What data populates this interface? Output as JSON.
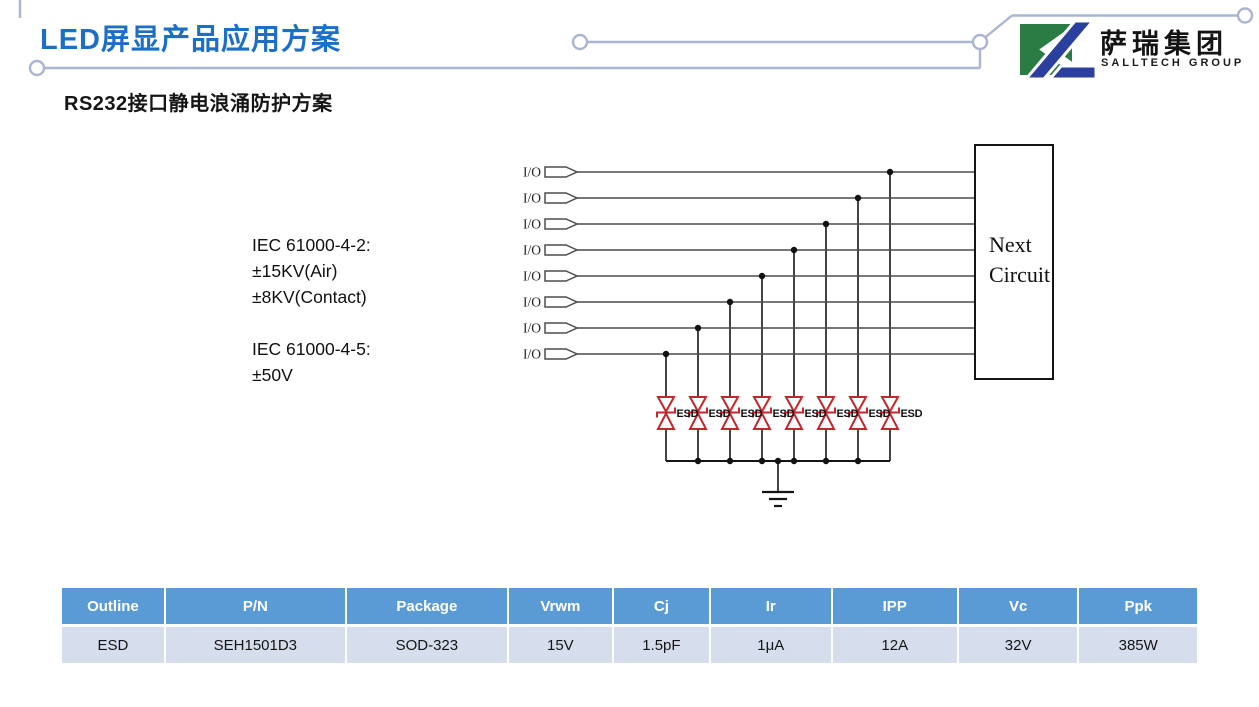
{
  "header": {
    "title": "LED屏显产品应用方案",
    "logo": {
      "cn": "萨瑞集团",
      "en": "SALLTECH GROUP"
    }
  },
  "subtitle": "RS232接口静电浪涌防护方案",
  "specs": {
    "lines": [
      "IEC 61000-4-2:",
      "±15KV(Air)",
      "±8KV(Contact)",
      "",
      "IEC 61000-4-5:",
      "±50V"
    ]
  },
  "circuit": {
    "io_label": "I/O",
    "io_count": 8,
    "esd_label": "ESD",
    "esd_count": 8,
    "next_circuit": [
      "Next",
      "Circuit"
    ]
  },
  "table": {
    "headers": [
      "Outline",
      "P/N",
      "Package",
      "Vrwm",
      "Cj",
      "Ir",
      "IPP",
      "Vc",
      "Ppk"
    ],
    "rows": [
      [
        "ESD",
        "SEH1501D3",
        "SOD-323",
        "15V",
        "1.5pF",
        "1μA",
        "12A",
        "32V",
        "385W"
      ]
    ]
  },
  "colors": {
    "accent": "#1D6FC5",
    "trace": "#A9B5D2",
    "logo_green": "#2A7B44",
    "logo_blue": "#2B3F9E",
    "diode_red": "#C2272D",
    "table_header_bg": "#5B9BD5",
    "table_row_bg": "#D6DEED"
  }
}
